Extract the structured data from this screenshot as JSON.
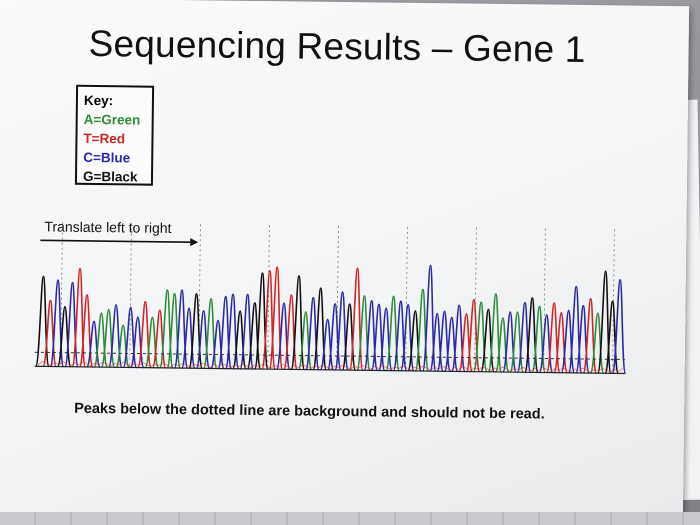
{
  "poster": {
    "title": "Sequencing Results – Gene 1",
    "key": {
      "heading": "Key:",
      "items": [
        {
          "label": "A=Green",
          "base": "A",
          "color": "#2e8b3a"
        },
        {
          "label": "T=Red",
          "base": "T",
          "color": "#cf2626"
        },
        {
          "label": "C=Blue",
          "base": "C",
          "color": "#2a2aa8"
        },
        {
          "label": "G=Black",
          "base": "G",
          "color": "#111111"
        }
      ]
    },
    "direction_label": "Translate left to right",
    "note": "Peaks below the dotted line are background and should not be read."
  },
  "chromatogram": {
    "colors": {
      "A": "#2e8b3a",
      "T": "#cf2626",
      "C": "#2a2aa8",
      "G": "#111111"
    },
    "bases": "GTCGCTTCAACACCTATAACCGCACCCGCGGTTCTGACGCCCGTACCCACCGACCCCCTTAGAACACGACTTCCCTAGGC",
    "peak_levels": [
      0.75,
      0.55,
      0.72,
      0.5,
      0.7,
      0.82,
      0.6,
      0.38,
      0.45,
      0.48,
      0.52,
      0.35,
      0.5,
      0.42,
      0.55,
      0.42,
      0.48,
      0.65,
      0.62,
      0.65,
      0.5,
      0.62,
      0.48,
      0.58,
      0.4,
      0.6,
      0.62,
      0.48,
      0.62,
      0.55,
      0.8,
      0.82,
      0.85,
      0.55,
      0.62,
      0.78,
      0.48,
      0.6,
      0.68,
      0.42,
      0.55,
      0.65,
      0.55,
      0.85,
      0.62,
      0.58,
      0.55,
      0.52,
      0.62,
      0.58,
      0.55,
      0.5,
      0.68,
      0.88,
      0.48,
      0.5,
      0.45,
      0.55,
      0.48,
      0.6,
      0.58,
      0.52,
      0.65,
      0.45,
      0.5,
      0.5,
      0.58,
      0.62,
      0.55,
      0.48,
      0.58,
      0.5,
      0.52,
      0.72,
      0.56,
      0.62,
      0.5,
      0.85,
      0.6,
      0.78
    ]
  }
}
